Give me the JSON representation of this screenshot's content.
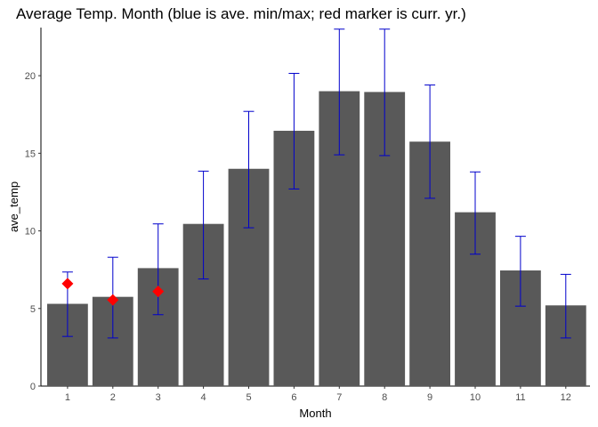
{
  "chart_data": {
    "type": "bar",
    "title": "Average Temp. Month (blue is ave. min/max; red marker is curr. yr.)",
    "xlabel": "Month",
    "ylabel": "ave_temp",
    "categories": [
      "1",
      "2",
      "3",
      "4",
      "5",
      "6",
      "7",
      "8",
      "9",
      "10",
      "11",
      "12"
    ],
    "values": [
      5.3,
      5.75,
      7.6,
      10.45,
      14.0,
      16.45,
      19.0,
      18.95,
      15.75,
      11.2,
      7.45,
      5.2
    ],
    "error_min": [
      3.2,
      3.1,
      4.6,
      6.9,
      10.2,
      12.7,
      14.9,
      14.85,
      12.1,
      8.5,
      5.15,
      3.1
    ],
    "error_max": [
      7.35,
      8.3,
      10.45,
      13.85,
      17.7,
      20.15,
      23.0,
      23.0,
      19.4,
      13.8,
      9.65,
      7.2
    ],
    "current_year": {
      "categories": [
        "1",
        "2",
        "3"
      ],
      "values": [
        6.6,
        5.55,
        6.1
      ]
    },
    "ylim": [
      0,
      23.1
    ],
    "yticks": [
      0,
      5,
      10,
      15,
      20
    ],
    "grid": false,
    "colors": {
      "bar": "#595959",
      "error_bar": "#0000cc",
      "marker": "#ff0000"
    }
  }
}
